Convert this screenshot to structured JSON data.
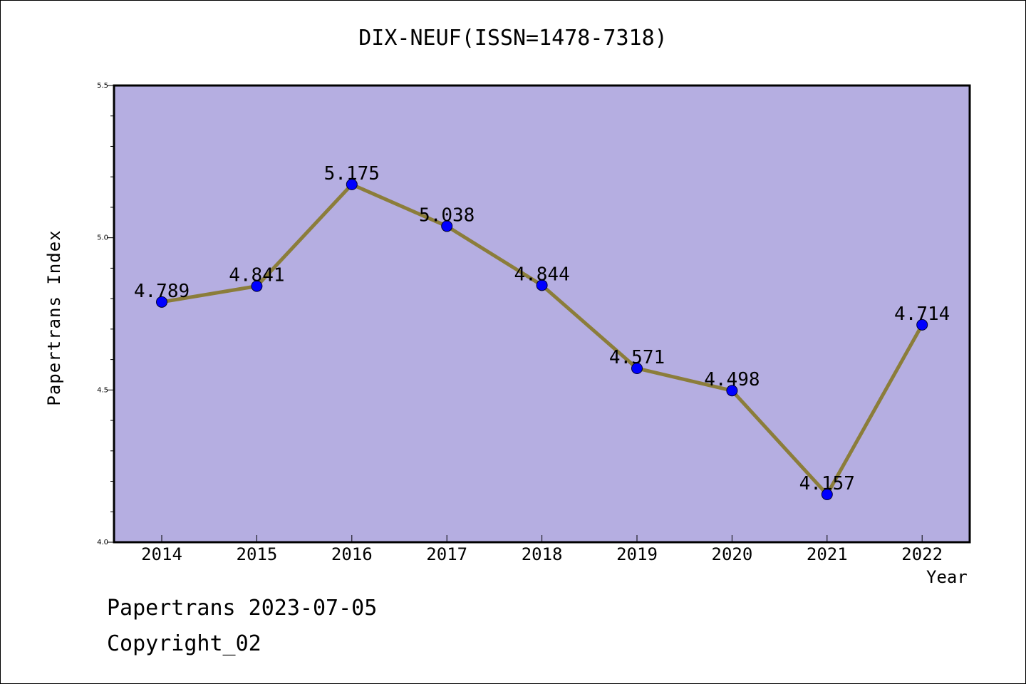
{
  "chart_data": {
    "type": "line",
    "title": "DIX-NEUF(ISSN=1478-7318)",
    "xlabel": "Year",
    "ylabel": "Papertrans Index",
    "categories": [
      "2014",
      "2015",
      "2016",
      "2017",
      "2018",
      "2019",
      "2020",
      "2021",
      "2022"
    ],
    "series": [
      {
        "values": [
          4.789,
          4.841,
          5.175,
          5.038,
          4.844,
          4.571,
          4.498,
          4.157,
          4.714
        ],
        "labels": [
          "4.789",
          "4.841",
          "5.175",
          "5.038",
          "4.844",
          "4.571",
          "4.498",
          "4.157",
          "4.714"
        ],
        "line_color": "#8b7d3a",
        "marker_color": "#0000ff"
      }
    ],
    "ylim": [
      4.0,
      5.5
    ],
    "yticks": [
      "4.0",
      "4.5",
      "5.0",
      "5.5"
    ],
    "plot_background": "#b5aee1",
    "grid": false
  },
  "footer": {
    "line1": "Papertrans 2023-07-05",
    "line2": "Copyright_02"
  }
}
